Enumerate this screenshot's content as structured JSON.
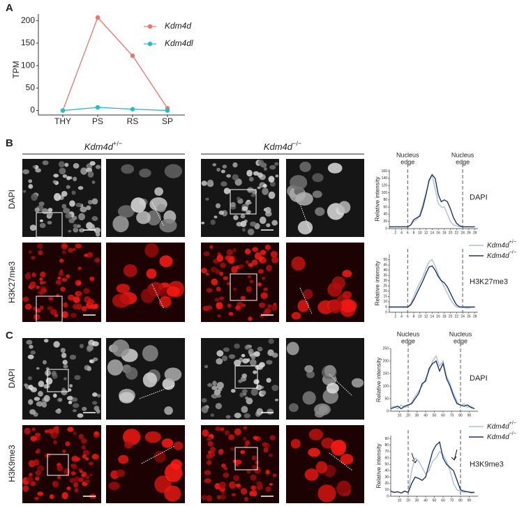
{
  "panels": {
    "a": "A",
    "b": "B",
    "c": "C"
  },
  "genotypes": [
    {
      "base": "Kdm4d",
      "sup": "+/−"
    },
    {
      "base": "Kdm4d",
      "sup": "−/−"
    }
  ],
  "row_labels": {
    "b": [
      "DAPI",
      "H3K27me3"
    ],
    "c": [
      "DAPI",
      "H3K9me3"
    ]
  },
  "chart_data": [
    {
      "type": "line",
      "y_label": "TPM",
      "categories": [
        "THY",
        "PS",
        "RS",
        "SP"
      ],
      "series": [
        {
          "name": "Kdm4d",
          "color": "#f0736b",
          "values": [
            0,
            207,
            122,
            5
          ]
        },
        {
          "name": "Kdm4dl",
          "color": "#1fbfc3",
          "values": [
            0,
            7,
            3,
            0
          ]
        }
      ],
      "ylim": [
        -10,
        215
      ],
      "yticks": [
        0,
        50,
        100,
        150,
        200
      ]
    },
    {
      "type": "profile",
      "y_label": "Relative intensity",
      "label": "DAPI",
      "edge_label": [
        "Nucleus",
        "edge"
      ],
      "vlines": [
        6,
        24
      ],
      "x": [
        0,
        1,
        2,
        3,
        4,
        5,
        6,
        7,
        8,
        9,
        10,
        11,
        12,
        13,
        14,
        15,
        16,
        17,
        18,
        19,
        20,
        21,
        22,
        23,
        24,
        25,
        26,
        27,
        28
      ],
      "series": [
        {
          "color": "#a9bfe2",
          "values": [
            5,
            5,
            5,
            5,
            5,
            5,
            5,
            10,
            20,
            25,
            40,
            70,
            100,
            130,
            150,
            110,
            70,
            60,
            60,
            40,
            20,
            10,
            8,
            5,
            5,
            5,
            5,
            5,
            5
          ]
        },
        {
          "color": "#1f3566",
          "values": [
            5,
            5,
            5,
            5,
            5,
            5,
            5,
            10,
            25,
            30,
            35,
            60,
            95,
            135,
            150,
            140,
            95,
            75,
            80,
            75,
            55,
            30,
            15,
            8,
            5,
            5,
            5,
            5,
            5
          ]
        }
      ],
      "xlim": [
        0,
        29
      ],
      "xticks": [
        2,
        4,
        6,
        8,
        10,
        12,
        14,
        16,
        18,
        20,
        22,
        24,
        26,
        28
      ],
      "ylim": [
        0,
        165
      ],
      "yticks": [
        0,
        20,
        40,
        60,
        80,
        100,
        120,
        140,
        160
      ]
    },
    {
      "type": "profile",
      "y_label": "Relative intensity",
      "label": "H3K27me3",
      "vlines": [
        6,
        24
      ],
      "x": [
        0,
        1,
        2,
        3,
        4,
        5,
        6,
        7,
        8,
        9,
        10,
        11,
        12,
        13,
        14,
        15,
        16,
        17,
        18,
        19,
        20,
        21,
        22,
        23,
        24,
        25,
        26,
        27,
        28
      ],
      "series": [
        {
          "name": "Kdm4d",
          "name_sup": "+/−",
          "color": "#a9bfe2",
          "values": [
            5,
            5,
            5,
            5,
            5,
            5,
            5,
            8,
            15,
            22,
            28,
            34,
            42,
            48,
            50,
            44,
            36,
            30,
            24,
            18,
            12,
            8,
            5,
            5,
            5,
            4,
            4,
            5,
            5
          ]
        },
        {
          "name": "Kdm4d",
          "name_sup": "−/−",
          "color": "#1f3566",
          "values": [
            5,
            5,
            5,
            5,
            5,
            5,
            5,
            7,
            12,
            18,
            24,
            30,
            37,
            43,
            44,
            40,
            34,
            30,
            28,
            24,
            18,
            12,
            7,
            5,
            5,
            5,
            5,
            5,
            5
          ]
        }
      ],
      "xlim": [
        0,
        29
      ],
      "xticks": [
        2,
        4,
        6,
        8,
        10,
        12,
        14,
        16,
        18,
        20,
        22,
        24,
        26,
        28
      ],
      "ylim": [
        0,
        55
      ],
      "yticks": [
        0,
        5,
        10,
        15,
        20,
        25,
        30,
        35,
        40,
        45,
        50
      ]
    },
    {
      "type": "profile",
      "y_label": "Relative intensity",
      "label": "DAPI",
      "edge_label": [
        "Nucleus",
        "edge"
      ],
      "vlines": [
        20,
        80
      ],
      "x": [
        0,
        4,
        8,
        12,
        16,
        20,
        24,
        28,
        32,
        36,
        40,
        44,
        48,
        52,
        56,
        60,
        64,
        68,
        72,
        76,
        80,
        84,
        88,
        92,
        96
      ],
      "series": [
        {
          "color": "#a9bfe2",
          "values": [
            15,
            20,
            10,
            25,
            15,
            20,
            35,
            60,
            80,
            100,
            130,
            160,
            200,
            220,
            180,
            200,
            140,
            110,
            70,
            40,
            20,
            30,
            15,
            20,
            10
          ]
        },
        {
          "color": "#1f3566",
          "values": [
            10,
            15,
            20,
            10,
            20,
            25,
            30,
            50,
            70,
            110,
            120,
            170,
            190,
            200,
            160,
            190,
            130,
            100,
            60,
            30,
            25,
            20,
            25,
            15,
            10
          ]
        }
      ],
      "xlim": [
        0,
        100
      ],
      "xticks": [
        10,
        20,
        30,
        40,
        50,
        60,
        70,
        80,
        90
      ],
      "ylim": [
        0,
        250
      ],
      "yticks": [
        0,
        50,
        100,
        150,
        200,
        250
      ]
    },
    {
      "type": "profile",
      "y_label": "Relative intensity",
      "label": "H3K9me3",
      "vlines": [
        20,
        80
      ],
      "x": [
        0,
        4,
        8,
        12,
        16,
        20,
        24,
        28,
        32,
        36,
        40,
        44,
        48,
        52,
        56,
        60,
        64,
        68,
        72,
        76,
        80,
        84,
        88,
        92,
        96
      ],
      "series": [
        {
          "name": "Kdm4d",
          "name_sup": "+/−",
          "color": "#a9bfe2",
          "values": [
            8,
            6,
            7,
            5,
            8,
            6,
            40,
            60,
            55,
            45,
            35,
            40,
            55,
            60,
            70,
            65,
            55,
            40,
            20,
            10,
            8,
            6,
            7,
            5,
            6
          ]
        },
        {
          "name": "Kdm4d",
          "name_sup": "−/−",
          "color": "#1f3566",
          "values": [
            8,
            6,
            7,
            5,
            8,
            6,
            20,
            30,
            28,
            25,
            30,
            50,
            70,
            80,
            85,
            60,
            50,
            45,
            40,
            25,
            10,
            8,
            7,
            6,
            6
          ]
        }
      ],
      "xlim": [
        0,
        100
      ],
      "xticks": [
        10,
        20,
        30,
        40,
        50,
        60,
        70,
        80,
        90
      ],
      "ylim": [
        0,
        95
      ],
      "yticks": [
        0,
        10,
        20,
        30,
        40,
        50,
        60,
        70,
        80,
        90
      ]
    }
  ]
}
